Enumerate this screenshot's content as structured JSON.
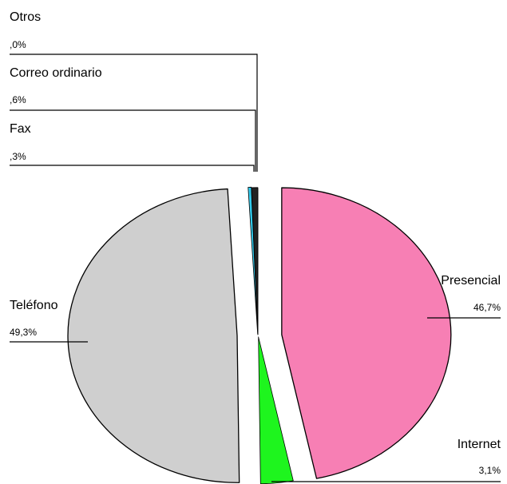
{
  "chart_data": {
    "type": "pie",
    "exploded": true,
    "legend": "none",
    "slices": [
      {
        "label": "Presencial",
        "value": 46.7,
        "value_text": "46,7%",
        "color": "#f77fb4"
      },
      {
        "label": "Internet",
        "value": 3.1,
        "value_text": "3,1%",
        "color": "#1ef51e"
      },
      {
        "label": "Teléfono",
        "value": 49.3,
        "value_text": "49,3%",
        "color": "#cfcfcf"
      },
      {
        "label": "Fax",
        "value": 0.3,
        "value_text": ",3%",
        "color": "#33ccee"
      },
      {
        "label": "Correo ordinario",
        "value": 0.6,
        "value_text": ",6%",
        "color": "#222222"
      },
      {
        "label": "Otros",
        "value": 0.0,
        "value_text": ",0%",
        "color": "#888888"
      }
    ]
  }
}
